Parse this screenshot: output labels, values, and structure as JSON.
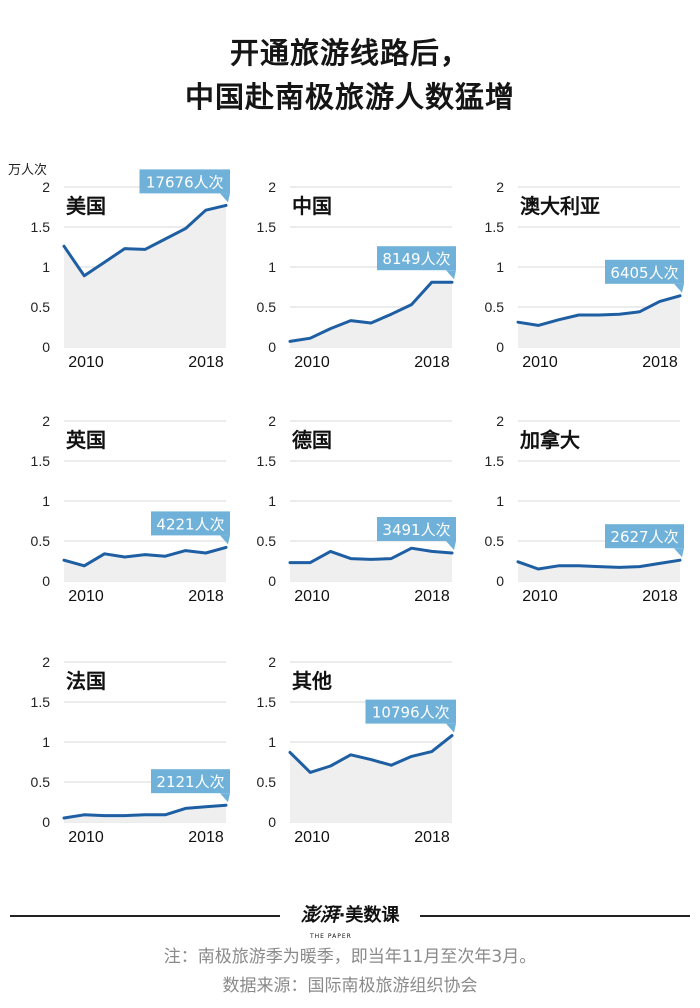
{
  "title_line1": "开通旅游线路后，",
  "title_line2": "中国赴南极旅游人数猛增",
  "unit_label": "万人次",
  "footer": {
    "logo_brand": "澎湃",
    "logo_sub": "THE PAPER",
    "logo_dot": "·",
    "logo_text": "美数课",
    "note": "注：南极旅游季为暖季，即当年11月至次年3月。",
    "source": "数据来源：国际南极旅游组织协会"
  },
  "colors": {
    "line": "#1e5fa3",
    "area": "#efefef",
    "callout": "#6fb1d9",
    "grid": "#d8d8d8"
  },
  "chart_data": [
    {
      "type": "area",
      "title": "美国",
      "unit": "万人次",
      "x": [
        2009,
        2010,
        2011,
        2012,
        2013,
        2014,
        2015,
        2016,
        2017
      ],
      "y": [
        1.26,
        0.89,
        1.06,
        1.23,
        1.22,
        1.35,
        1.48,
        1.71,
        1.77
      ],
      "ylim": [
        0,
        2
      ],
      "yticks": [
        "0",
        "0.5",
        "1",
        "1.5",
        "2"
      ],
      "xtick_labels": [
        "2010",
        "2018"
      ],
      "callout": "17676人次"
    },
    {
      "type": "area",
      "title": "中国",
      "unit": "万人次",
      "x": [
        2009,
        2010,
        2011,
        2012,
        2013,
        2014,
        2015,
        2016,
        2017
      ],
      "y": [
        0.07,
        0.11,
        0.23,
        0.33,
        0.3,
        0.41,
        0.53,
        0.81,
        0.81
      ],
      "ylim": [
        0,
        2
      ],
      "yticks": [
        "0",
        "0.5",
        "1",
        "1.5",
        "2"
      ],
      "xtick_labels": [
        "2010",
        "2018"
      ],
      "callout": "8149人次"
    },
    {
      "type": "area",
      "title": "澳大利亚",
      "unit": "万人次",
      "x": [
        2009,
        2010,
        2011,
        2012,
        2013,
        2014,
        2015,
        2016,
        2017
      ],
      "y": [
        0.31,
        0.27,
        0.34,
        0.4,
        0.4,
        0.41,
        0.44,
        0.57,
        0.64
      ],
      "ylim": [
        0,
        2
      ],
      "yticks": [
        "0",
        "0.5",
        "1",
        "1.5",
        "2"
      ],
      "xtick_labels": [
        "2010",
        "2018"
      ],
      "callout": "6405人次"
    },
    {
      "type": "area",
      "title": "英国",
      "unit": "万人次",
      "x": [
        2009,
        2010,
        2011,
        2012,
        2013,
        2014,
        2015,
        2016,
        2017
      ],
      "y": [
        0.26,
        0.19,
        0.34,
        0.3,
        0.33,
        0.31,
        0.38,
        0.35,
        0.42
      ],
      "ylim": [
        0,
        2
      ],
      "yticks": [
        "0",
        "0.5",
        "1",
        "1.5",
        "2"
      ],
      "xtick_labels": [
        "2010",
        "2018"
      ],
      "callout": "4221人次"
    },
    {
      "type": "area",
      "title": "德国",
      "unit": "万人次",
      "x": [
        2009,
        2010,
        2011,
        2012,
        2013,
        2014,
        2015,
        2016,
        2017
      ],
      "y": [
        0.23,
        0.23,
        0.37,
        0.28,
        0.27,
        0.28,
        0.41,
        0.37,
        0.35
      ],
      "ylim": [
        0,
        2
      ],
      "yticks": [
        "0",
        "0.5",
        "1",
        "1.5",
        "2"
      ],
      "xtick_labels": [
        "2010",
        "2018"
      ],
      "callout": "3491人次"
    },
    {
      "type": "area",
      "title": "加拿大",
      "unit": "万人次",
      "x": [
        2009,
        2010,
        2011,
        2012,
        2013,
        2014,
        2015,
        2016,
        2017
      ],
      "y": [
        0.24,
        0.15,
        0.19,
        0.19,
        0.18,
        0.17,
        0.18,
        0.22,
        0.26
      ],
      "ylim": [
        0,
        2
      ],
      "yticks": [
        "0",
        "0.5",
        "1",
        "1.5",
        "2"
      ],
      "xtick_labels": [
        "2010",
        "2018"
      ],
      "callout": "2627人次"
    },
    {
      "type": "area",
      "title": "法国",
      "unit": "万人次",
      "x": [
        2009,
        2010,
        2011,
        2012,
        2013,
        2014,
        2015,
        2016,
        2017
      ],
      "y": [
        0.05,
        0.09,
        0.08,
        0.08,
        0.09,
        0.09,
        0.17,
        0.19,
        0.21
      ],
      "ylim": [
        0,
        2
      ],
      "yticks": [
        "0",
        "0.5",
        "1",
        "1.5",
        "2"
      ],
      "xtick_labels": [
        "2010",
        "2018"
      ],
      "callout": "2121人次"
    },
    {
      "type": "area",
      "title": "其他",
      "unit": "万人次",
      "x": [
        2009,
        2010,
        2011,
        2012,
        2013,
        2014,
        2015,
        2016,
        2017
      ],
      "y": [
        0.87,
        0.62,
        0.7,
        0.84,
        0.78,
        0.71,
        0.82,
        0.88,
        1.08
      ],
      "ylim": [
        0,
        2
      ],
      "yticks": [
        "0",
        "0.5",
        "1",
        "1.5",
        "2"
      ],
      "xtick_labels": [
        "2010",
        "2018"
      ],
      "callout": "10796人次"
    }
  ]
}
